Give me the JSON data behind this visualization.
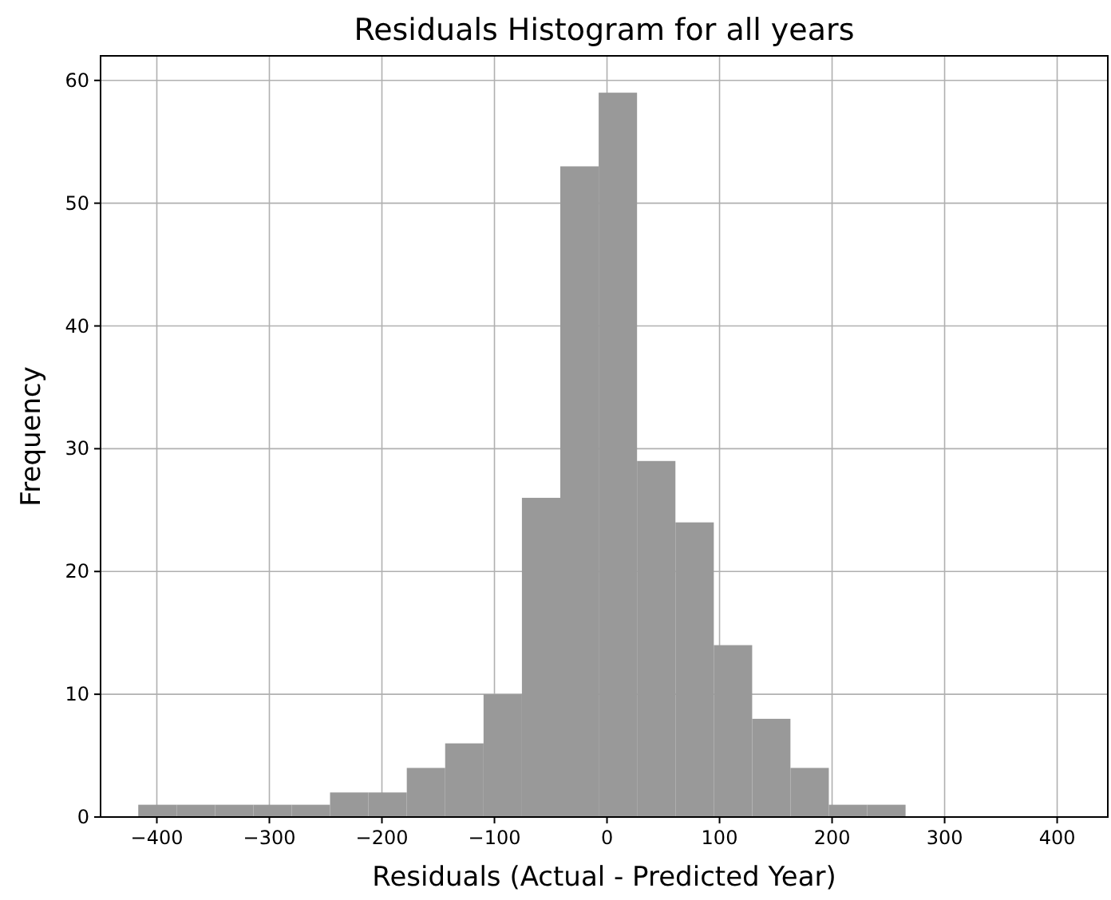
{
  "chart_data": {
    "type": "histogram",
    "title": "Residuals Histogram for all years",
    "xlabel": "Residuals (Actual - Predicted Year)",
    "ylabel": "Frequency",
    "bins": [
      -416.5,
      -382.4,
      -348.3,
      -314.2,
      -280.1,
      -246.1,
      -212.0,
      -177.9,
      -143.8,
      -109.7,
      -75.6,
      -41.5,
      -7.4,
      26.7,
      60.8,
      94.9,
      129.0,
      163.0,
      197.1,
      231.2,
      265.3
    ],
    "values": [
      1,
      1,
      1,
      1,
      1,
      2,
      2,
      4,
      6,
      10,
      26,
      53,
      59,
      29,
      24,
      14,
      8,
      4,
      1,
      1
    ],
    "color": "#999999",
    "xlim": [
      -450,
      445
    ],
    "xticks": [
      {
        "value": -400,
        "label": "−400"
      },
      {
        "value": -300,
        "label": "−300"
      },
      {
        "value": -200,
        "label": "−200"
      },
      {
        "value": -100,
        "label": "−100"
      },
      0,
      100,
      200,
      300,
      400
    ],
    "ylim": [
      0,
      62
    ],
    "yticks": [
      0,
      10,
      20,
      30,
      40,
      50,
      60
    ],
    "grid": true
  }
}
